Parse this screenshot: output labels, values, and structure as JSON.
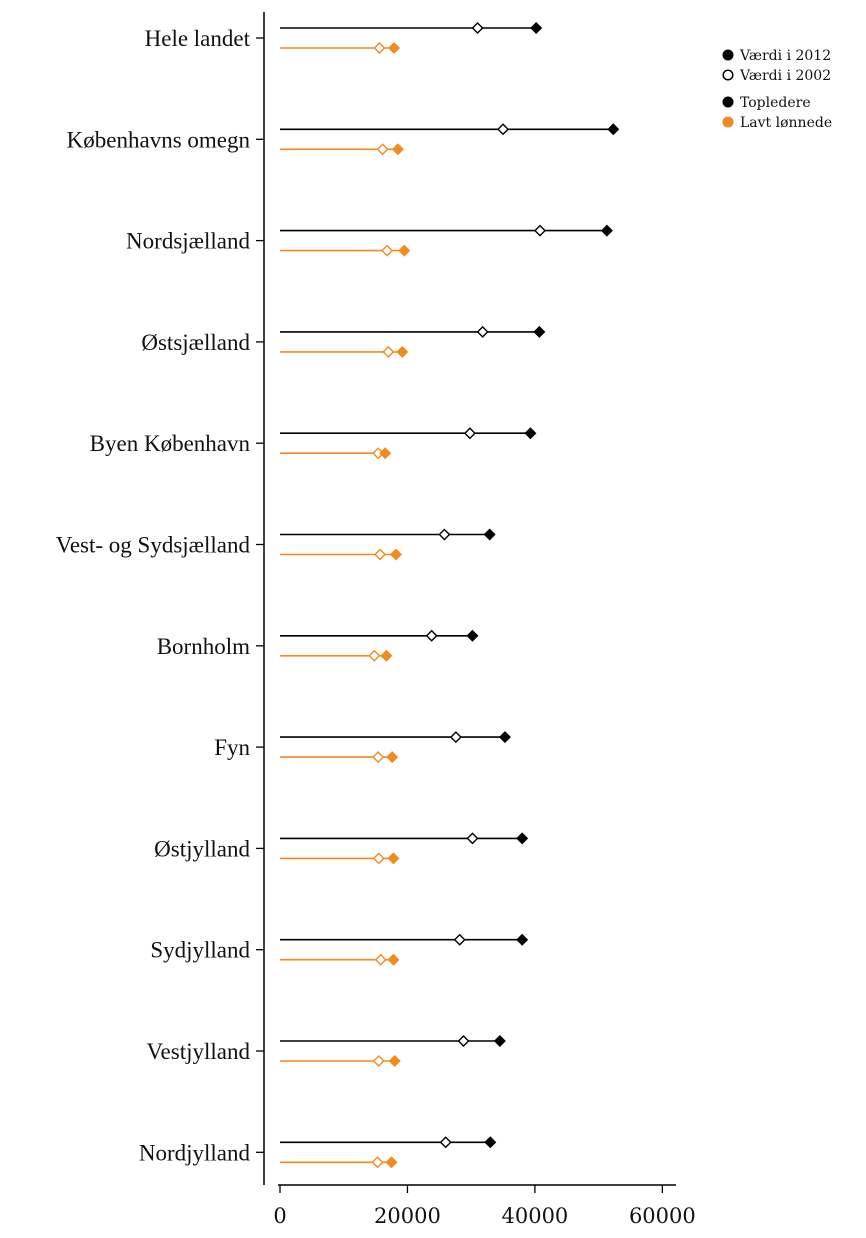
{
  "chart_data": {
    "type": "dot-range",
    "categories": [
      "Hele landet",
      "Københavns omegn",
      "Nordsjælland",
      "Østsjælland",
      "Byen København",
      "Vest- og Sydsjælland",
      "Bornholm",
      "Fyn",
      "Østjylland",
      "Sydjylland",
      "Vestjylland",
      "Nordjylland"
    ],
    "series": [
      {
        "name": "Topledere",
        "color": "#000000",
        "values_2012": [
          40200,
          52300,
          51300,
          40700,
          39300,
          32900,
          30200,
          35300,
          38000,
          38000,
          34500,
          33000
        ],
        "values_2002": [
          31000,
          35000,
          40800,
          31800,
          29800,
          25800,
          23800,
          27600,
          30200,
          28200,
          28800,
          26000
        ]
      },
      {
        "name": "Lavt lønnede",
        "color": "#f28a1e",
        "values_2012": [
          17900,
          18500,
          19500,
          19200,
          16500,
          18200,
          16700,
          17600,
          17800,
          17800,
          18000,
          17500
        ],
        "values_2002": [
          15600,
          16100,
          16800,
          17000,
          15400,
          15700,
          14800,
          15400,
          15500,
          15800,
          15500,
          15300
        ]
      }
    ],
    "xlim": [
      0,
      62000
    ],
    "xticks": [
      0,
      20000,
      40000,
      60000
    ],
    "xtick_labels": [
      "0",
      "20000",
      "40000",
      "60000"
    ],
    "legend": {
      "position": "top-right",
      "markers": [
        {
          "label": "Værdi i 2012",
          "symbol": "filled-circle",
          "color": "#000000"
        },
        {
          "label": "Værdi i 2002",
          "symbol": "open-circle",
          "color": "#000000"
        }
      ],
      "groups": [
        {
          "label": "Topledere",
          "color": "#000000"
        },
        {
          "label": "Lavt lønnede",
          "color": "#f28a1e"
        }
      ]
    }
  }
}
